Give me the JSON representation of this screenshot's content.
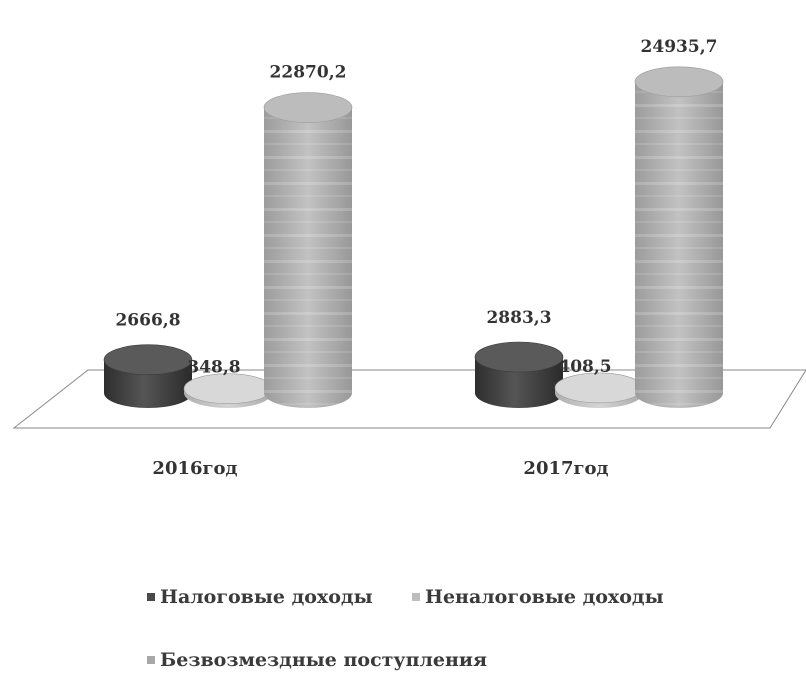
{
  "chart_data": {
    "type": "bar",
    "style": "3d-cylinder",
    "title": "",
    "xlabel": "",
    "ylabel": "",
    "grid": false,
    "ylim": [
      0,
      27000
    ],
    "legend_position": "bottom",
    "categories": [
      "2016год",
      "2017год"
    ],
    "series": [
      {
        "name": "Налоговые доходы",
        "color": "#4a4a4a",
        "values": [
          2666.8,
          2883.3
        ],
        "labels": [
          "2666,8",
          "2883,3"
        ]
      },
      {
        "name": "Неналоговые доходы",
        "color": "#bdbdbd",
        "values": [
          348.8,
          408.5
        ],
        "labels": [
          "348,8",
          "408,5"
        ]
      },
      {
        "name": "Безвозмездные поступления",
        "color": "#a8a8a8",
        "values": [
          22870.2,
          24935.7
        ],
        "labels": [
          "22870,2",
          "24935,7"
        ]
      }
    ]
  }
}
